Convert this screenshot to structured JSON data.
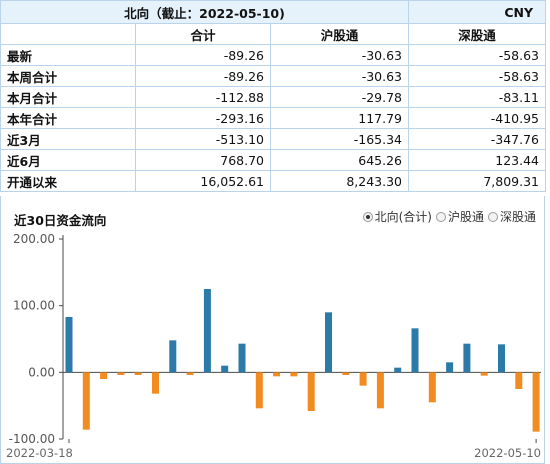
{
  "header": {
    "title": "北向（截止：2022-05-10)",
    "currency": "CNY"
  },
  "columns": [
    "合计",
    "沪股通",
    "深股通"
  ],
  "rows": [
    {
      "label": "最新",
      "values": [
        "-89.26",
        "-30.63",
        "-58.63"
      ]
    },
    {
      "label": "本周合计",
      "values": [
        "-89.26",
        "-30.63",
        "-58.63"
      ]
    },
    {
      "label": "本月合计",
      "values": [
        "-112.88",
        "-29.78",
        "-83.11"
      ]
    },
    {
      "label": "本年合计",
      "values": [
        "-293.16",
        "117.79",
        "-410.95"
      ]
    },
    {
      "label": "近3月",
      "values": [
        "-513.10",
        "-165.34",
        "-347.76"
      ]
    },
    {
      "label": "近6月",
      "values": [
        "768.70",
        "645.26",
        "123.44"
      ]
    },
    {
      "label": "开通以来",
      "values": [
        "16,052.61",
        "8,243.30",
        "7,809.31"
      ]
    }
  ],
  "chart_panel": {
    "title": "近30日资金流向",
    "radio_options": [
      "北向(合计)",
      "沪股通",
      "深股通"
    ],
    "selected_option": "北向(合计)"
  },
  "chart_data": {
    "type": "bar",
    "title": "",
    "xlabel": "",
    "ylabel": "",
    "ylim": [
      -100,
      200
    ],
    "yticks": [
      200,
      100,
      0,
      -100
    ],
    "ytick_labels": [
      "200.00",
      "100.00",
      "0.00",
      "-100.00"
    ],
    "x_labels": [
      "2022-03-18",
      "2022-05-10"
    ],
    "colors": {
      "positive": "#2c7aa8",
      "negative": "#f28c21",
      "axis": "#4a4a4a",
      "grid": "#d9d9d9"
    },
    "values": [
      83,
      -86,
      -10,
      -4,
      -4,
      -32,
      48,
      -4,
      125,
      10,
      43,
      -54,
      -6,
      -6,
      -58,
      90,
      -4,
      -20,
      -54,
      7,
      66,
      -45,
      15,
      43,
      -5,
      42,
      -25,
      -89
    ]
  }
}
